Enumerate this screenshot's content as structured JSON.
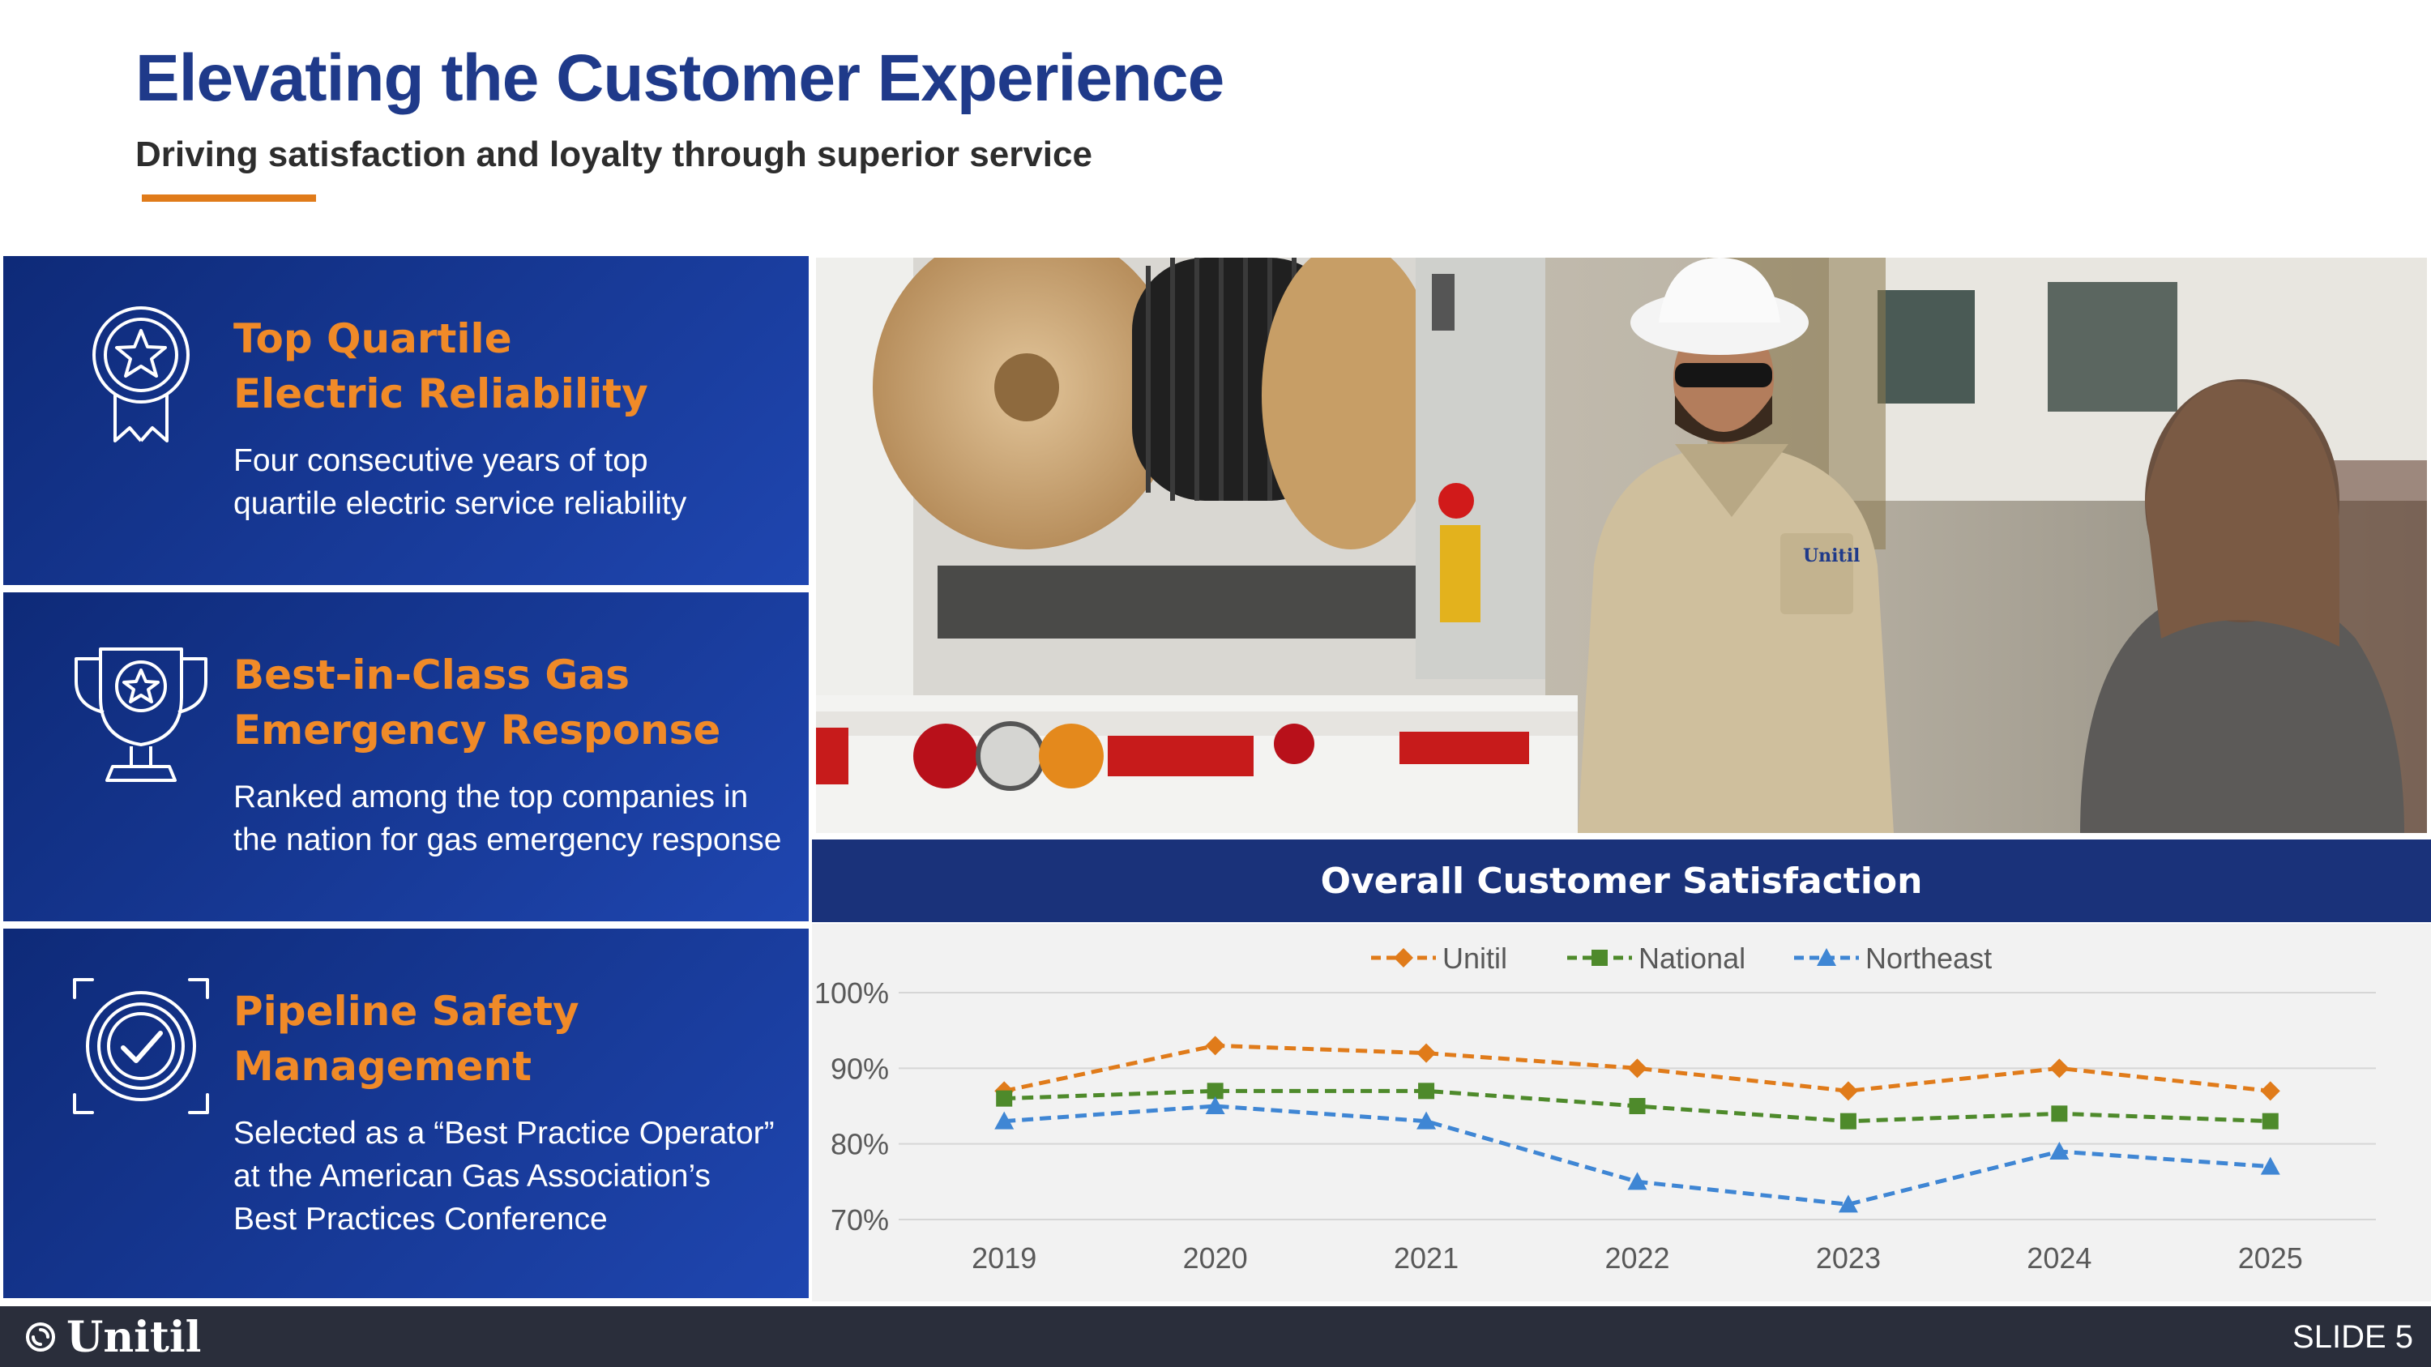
{
  "header": {
    "title": "Elevating the Customer Experience",
    "subtitle": "Driving satisfaction and loyalty through superior service"
  },
  "colors": {
    "navy": "#1f3a8a",
    "orange": "#e07b1a",
    "panel_blue": "#1f46b0",
    "footer": "#2a2e3b"
  },
  "highlights": [
    {
      "icon": "award-ribbon-star-icon",
      "heading_line1": "Top Quartile",
      "heading_line2": "Electric Reliability",
      "desc_line1": "Four consecutive years of top",
      "desc_line2": "quartile electric service reliability"
    },
    {
      "icon": "trophy-star-icon",
      "heading_line1": "Best-in-Class Gas",
      "heading_line2": "Emergency Response",
      "desc_line1": "Ranked among the top companies in",
      "desc_line2": "the nation for gas emergency response"
    },
    {
      "icon": "safety-check-icon",
      "heading_line1": "Pipeline Safety",
      "heading_line2": "Management",
      "desc_line1": "Selected as a “Best Practice Operator”",
      "desc_line2": "at the American Gas Association’s",
      "desc_line3": "Best Practices Conference"
    }
  ],
  "photo": {
    "shirt_logo": "Unitil"
  },
  "chart_data": {
    "type": "line",
    "title": "Overall Customer Satisfaction",
    "x": [
      "2019",
      "2020",
      "2021",
      "2022",
      "2023",
      "2024",
      "2025"
    ],
    "series": [
      {
        "name": "Unitil",
        "values": [
          87,
          93,
          92,
          90,
          87,
          90,
          87
        ],
        "color": "#e07b1a",
        "marker": "diamond"
      },
      {
        "name": "National",
        "values": [
          86,
          87,
          87,
          85,
          83,
          84,
          83
        ],
        "color": "#4e8a2b",
        "marker": "square"
      },
      {
        "name": "Northeast",
        "values": [
          83,
          85,
          83,
          75,
          72,
          79,
          77
        ],
        "color": "#3f86d4",
        "marker": "triangle"
      }
    ],
    "ylim": [
      70,
      100
    ],
    "yticks": [
      70,
      80,
      90,
      100
    ],
    "ytick_labels": [
      "70%",
      "80%",
      "90%",
      "100%"
    ],
    "grid": true,
    "legend": "top"
  },
  "footer": {
    "logo_text": "Unitil",
    "slide_label": "SLIDE 5"
  }
}
